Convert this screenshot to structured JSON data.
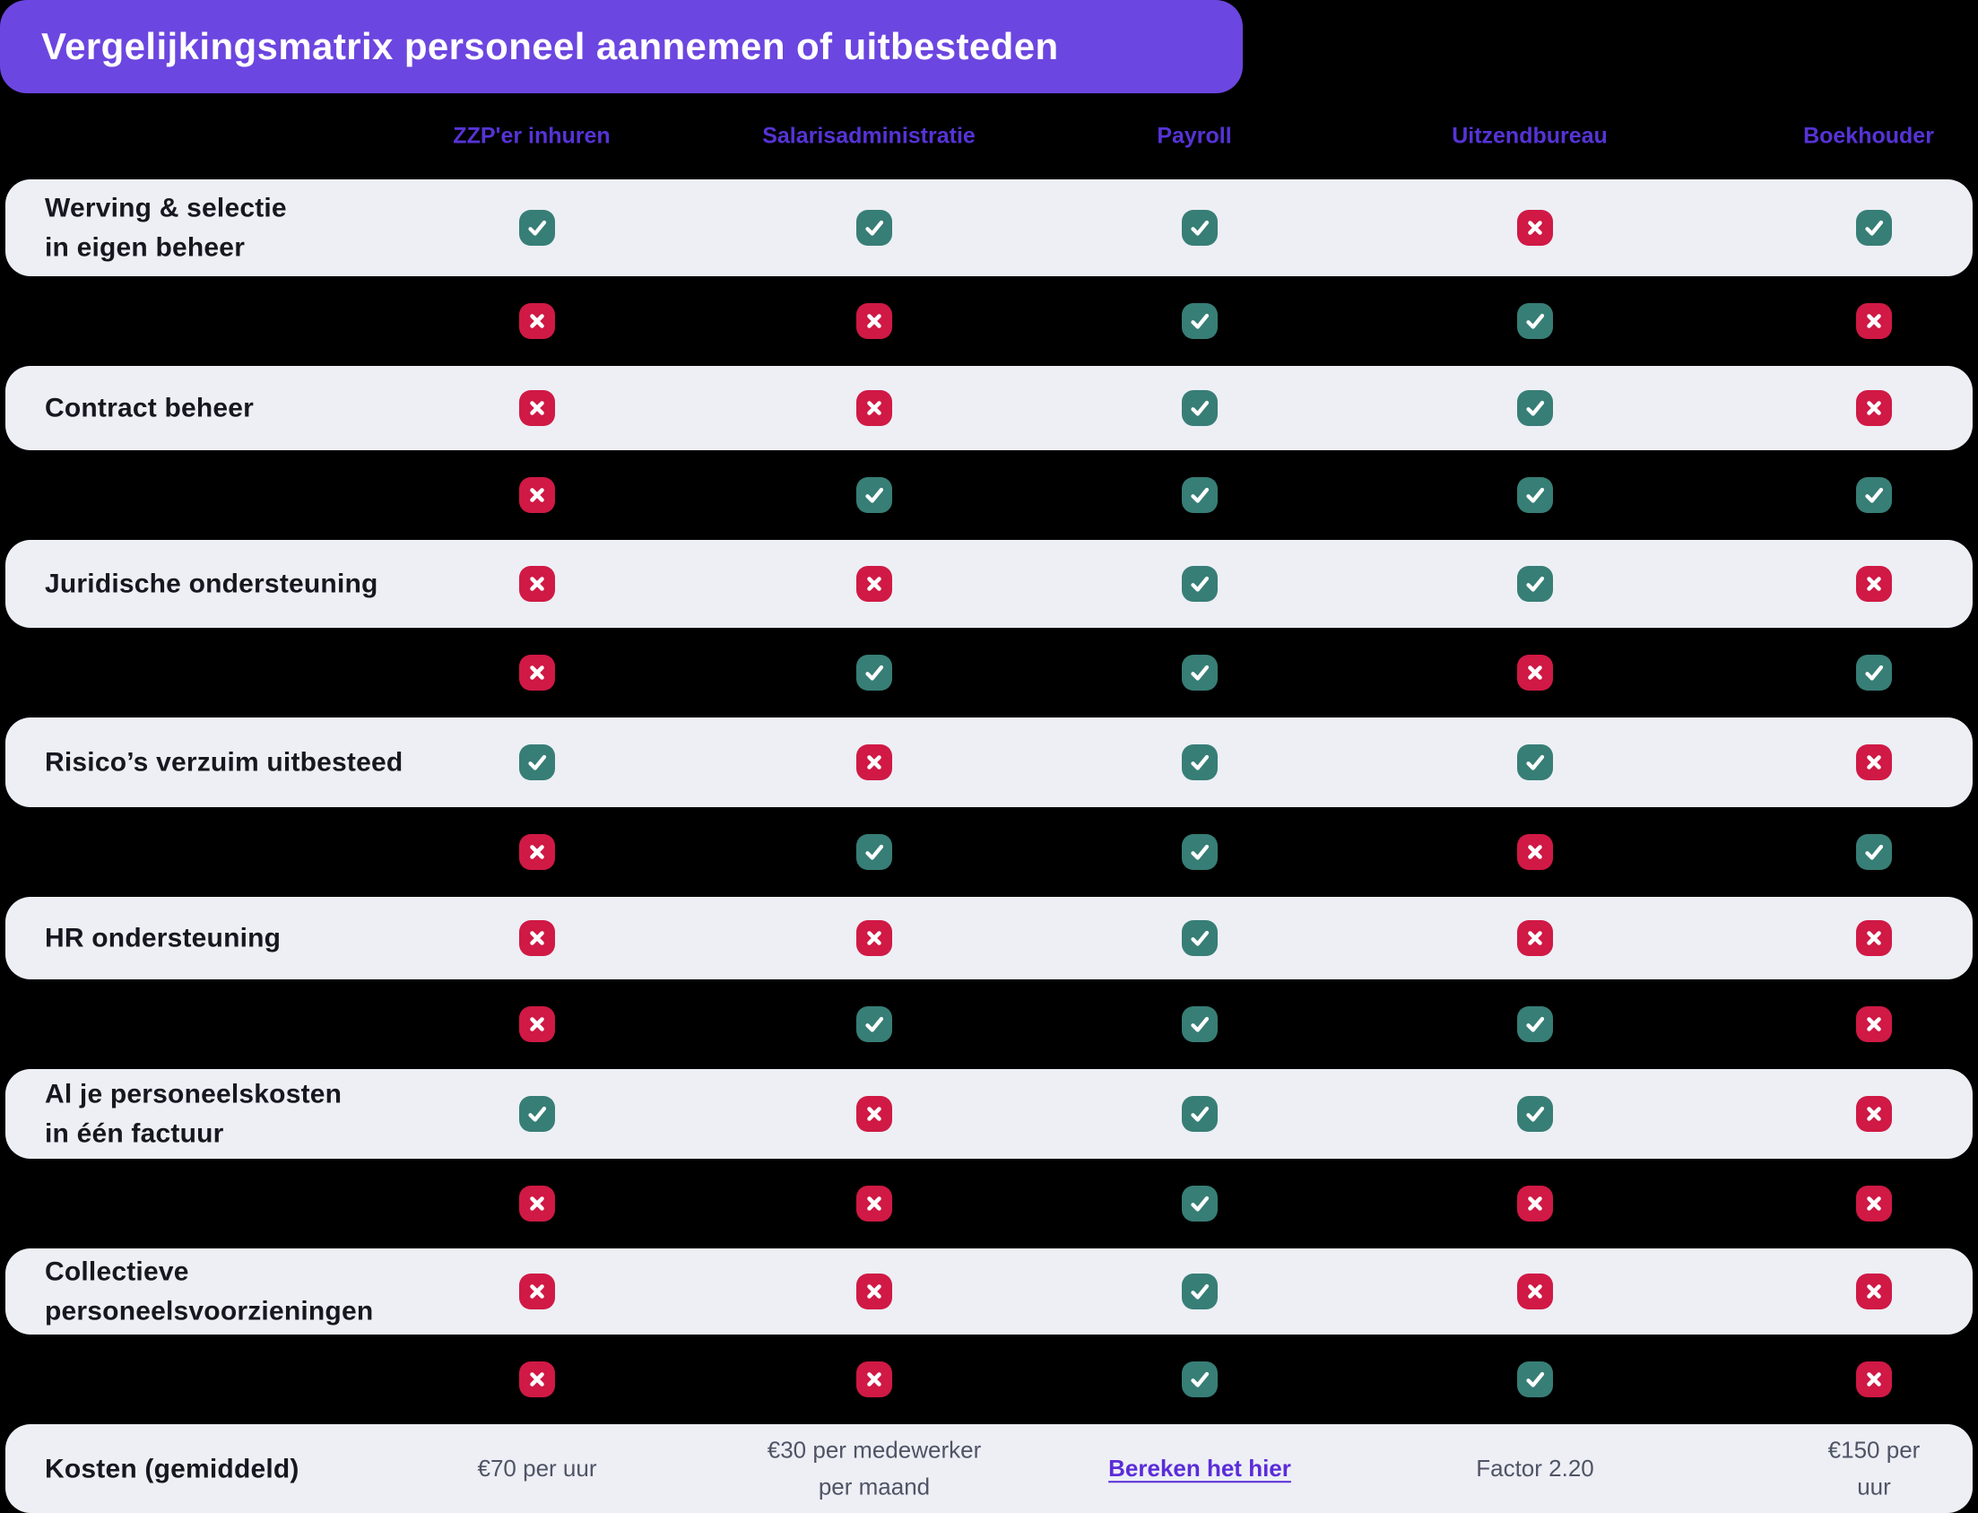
{
  "title": "Vergelijkingsmatrix personeel aannemen of uitbesteden",
  "header": {
    "columns": [
      "ZZP'er inhuren",
      "Salarisadministratie",
      "Payroll",
      "Uitzendbureau",
      "Boekhouder"
    ]
  },
  "matrix": {
    "rows": [
      {
        "label": "Werving & selectie\nin eigen beheer",
        "variant": "light",
        "cells": [
          "check",
          "check",
          "check",
          "cross",
          "check"
        ]
      },
      {
        "label": "",
        "variant": "dark",
        "cells": [
          "cross",
          "cross",
          "check",
          "check",
          "cross"
        ]
      },
      {
        "label": "Contract beheer",
        "variant": "light",
        "cells": [
          "cross",
          "cross",
          "check",
          "check",
          "cross"
        ]
      },
      {
        "label": "",
        "variant": "dark",
        "cells": [
          "cross",
          "check",
          "check",
          "check",
          "check"
        ]
      },
      {
        "label": "Juridische ondersteuning",
        "variant": "light",
        "cells": [
          "cross",
          "cross",
          "check",
          "check",
          "cross"
        ]
      },
      {
        "label": "",
        "variant": "dark",
        "cells": [
          "cross",
          "check",
          "check",
          "cross",
          "check"
        ]
      },
      {
        "label": "Risico’s verzuim uitbesteed",
        "variant": "light",
        "cells": [
          "check",
          "cross",
          "check",
          "check",
          "cross"
        ]
      },
      {
        "label": "",
        "variant": "dark",
        "cells": [
          "cross",
          "check",
          "check",
          "cross",
          "check"
        ]
      },
      {
        "label": "HR ondersteuning",
        "variant": "light",
        "cells": [
          "cross",
          "cross",
          "check",
          "cross",
          "cross"
        ]
      },
      {
        "label": "",
        "variant": "dark",
        "cells": [
          "cross",
          "check",
          "check",
          "check",
          "cross"
        ]
      },
      {
        "label": "Al je personeelskosten\nin één factuur",
        "variant": "light",
        "cells": [
          "check",
          "cross",
          "check",
          "check",
          "cross"
        ]
      },
      {
        "label": "",
        "variant": "dark",
        "cells": [
          "cross",
          "cross",
          "check",
          "cross",
          "cross"
        ]
      },
      {
        "label": "Collectieve\npersoneelsvoorzieningen",
        "variant": "light",
        "cells": [
          "cross",
          "cross",
          "check",
          "cross",
          "cross"
        ]
      },
      {
        "label": "",
        "variant": "dark",
        "cells": [
          "cross",
          "cross",
          "check",
          "check",
          "cross"
        ]
      }
    ]
  },
  "footer": {
    "label": "Kosten (gemiddeld)",
    "values": [
      {
        "text": "€70 per uur",
        "type": "text"
      },
      {
        "text": "€30 per medewerker\nper maand",
        "type": "text"
      },
      {
        "text": "Bereken het hier",
        "type": "link"
      },
      {
        "text": "Factor 2.20",
        "type": "text"
      },
      {
        "text": "€150 per uur",
        "type": "text"
      }
    ]
  },
  "icons": {
    "check": "check-icon",
    "cross": "cross-icon"
  },
  "colors": {
    "page_bg": "#000000",
    "banner": "#6C46E0",
    "header_text": "#5633D6",
    "row_bg": "#EDEFF5",
    "label_text": "#16181F",
    "check": "#377E76",
    "cross": "#D01945",
    "cost_text": "#4F5465",
    "link": "#5B2CD9"
  },
  "chart_data": {
    "type": "table",
    "title": "Vergelijkingsmatrix personeel aannemen of uitbesteden",
    "columns": [
      "",
      "ZZP'er inhuren",
      "Salarisadministratie",
      "Payroll",
      "Uitzendbureau",
      "Boekhouder"
    ],
    "rows": [
      [
        "Werving & selectie in eigen beheer",
        "yes",
        "yes",
        "yes",
        "no",
        "yes"
      ],
      [
        "",
        "no",
        "no",
        "yes",
        "yes",
        "no"
      ],
      [
        "Contract beheer",
        "no",
        "no",
        "yes",
        "yes",
        "no"
      ],
      [
        "",
        "no",
        "yes",
        "yes",
        "yes",
        "yes"
      ],
      [
        "Juridische ondersteuning",
        "no",
        "no",
        "yes",
        "yes",
        "no"
      ],
      [
        "",
        "no",
        "yes",
        "yes",
        "no",
        "yes"
      ],
      [
        "Risico’s verzuim uitbesteed",
        "yes",
        "no",
        "yes",
        "yes",
        "no"
      ],
      [
        "",
        "no",
        "yes",
        "yes",
        "no",
        "yes"
      ],
      [
        "HR ondersteuning",
        "no",
        "no",
        "yes",
        "no",
        "no"
      ],
      [
        "",
        "no",
        "yes",
        "yes",
        "yes",
        "no"
      ],
      [
        "Al je personeelskosten in één factuur",
        "yes",
        "no",
        "yes",
        "yes",
        "no"
      ],
      [
        "",
        "no",
        "no",
        "yes",
        "no",
        "no"
      ],
      [
        "Collectieve personeelsvoorzieningen",
        "no",
        "no",
        "yes",
        "no",
        "no"
      ],
      [
        "",
        "no",
        "no",
        "yes",
        "yes",
        "no"
      ],
      [
        "Kosten (gemiddeld)",
        "€70 per uur",
        "€30 per medewerker per maand",
        "Bereken het hier",
        "Factor 2.20",
        "€150 per uur"
      ]
    ],
    "legend": {
      "yes": "teal check icon",
      "no": "red cross icon"
    },
    "layout": "alternating light rounded rows and transparent dark rows"
  }
}
